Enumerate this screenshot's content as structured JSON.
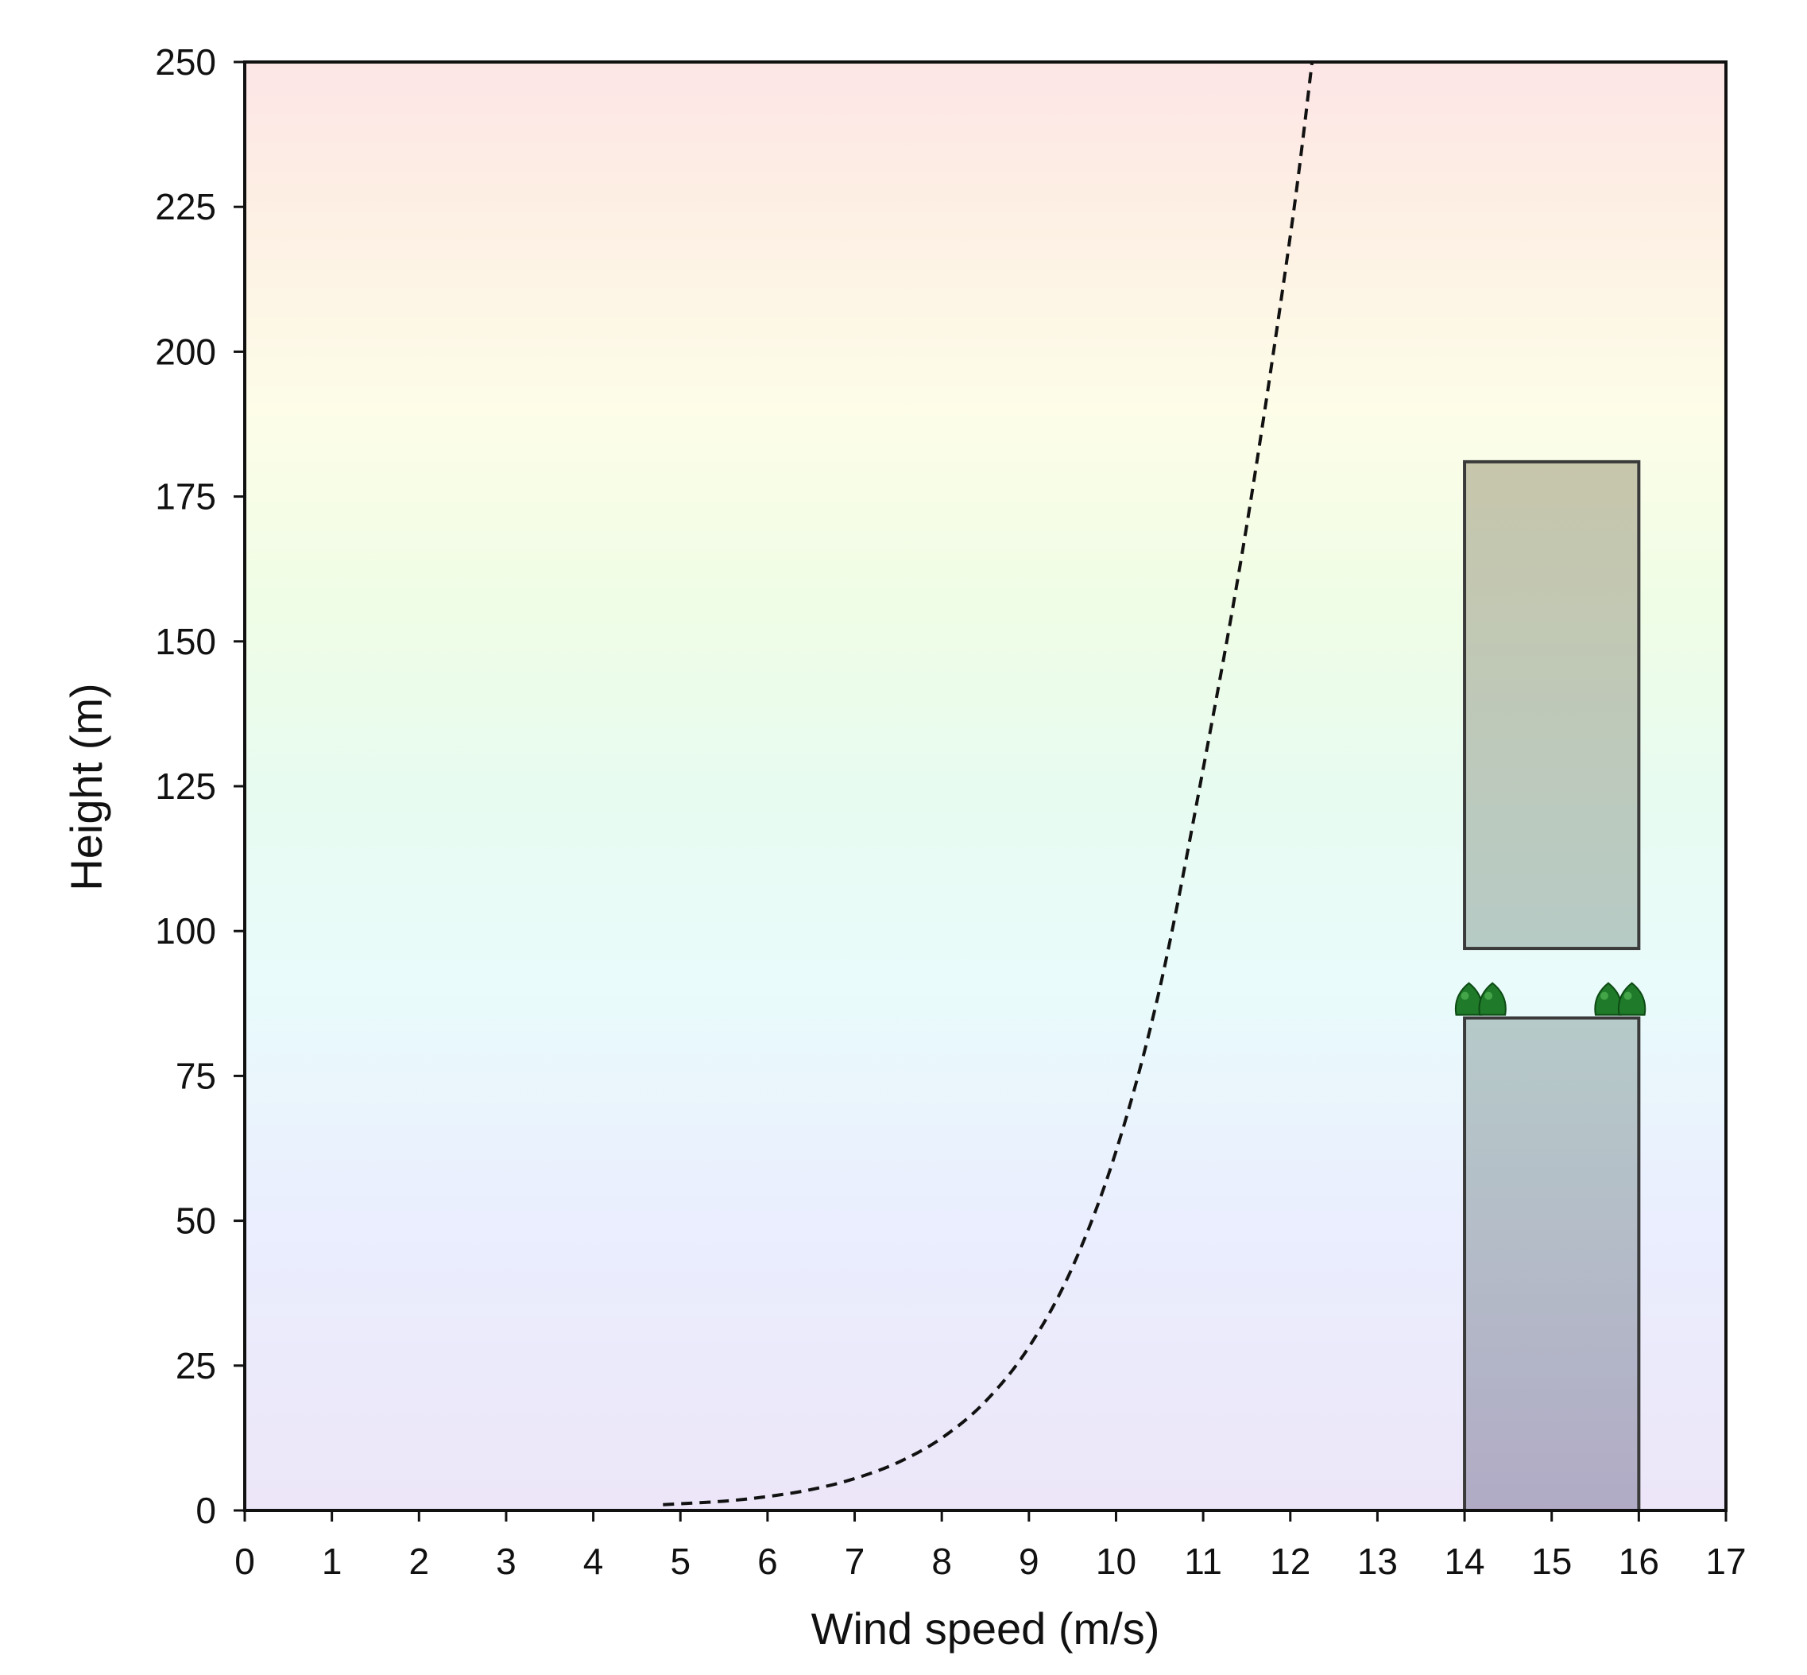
{
  "chart_data": {
    "type": "line",
    "title": "",
    "xlabel": "Wind speed (m/s)",
    "ylabel": "Height (m)",
    "xlim": [
      0,
      17
    ],
    "ylim": [
      0,
      250
    ],
    "xticks": [
      0,
      1,
      2,
      3,
      4,
      5,
      6,
      7,
      8,
      9,
      10,
      11,
      12,
      13,
      14,
      15,
      16,
      17
    ],
    "yticks": [
      0,
      25,
      50,
      75,
      100,
      125,
      150,
      175,
      200,
      225,
      250
    ],
    "grid": false,
    "legend": "none",
    "background": "vertical gradient: lavender (bottom) → light blue → light cyan → light green → light yellow → light pink (top)",
    "series": [
      {
        "style": "dashed",
        "color": "#111111",
        "x": [
          4.8,
          5.5,
          6.0,
          6.5,
          7.0,
          7.5,
          8.0,
          8.5,
          9.0,
          9.5,
          10.0,
          10.5,
          11.0,
          11.5,
          12.0,
          12.25
        ],
        "y": [
          1,
          1.6,
          2.4,
          3.6,
          5.5,
          8.3,
          12.5,
          18.8,
          28.2,
          42,
          62,
          90,
          128,
          170,
          220,
          250
        ]
      }
    ],
    "annotations": [
      {
        "kind": "rectangle",
        "x_range": [
          14.0,
          16.0
        ],
        "y_range": [
          97,
          181
        ],
        "fill_top": "#c7c6ab",
        "fill_bottom": "#b6cbc5"
      },
      {
        "kind": "rectangle",
        "x_range": [
          14.0,
          16.0
        ],
        "y_range": [
          0,
          85
        ],
        "fill_top": "#b6cac9",
        "fill_bottom": "#b1abc6"
      },
      {
        "kind": "tree-icons",
        "y": 88,
        "x": [
          14.05,
          14.32,
          15.65,
          15.92
        ],
        "color": "#1f7a2a"
      }
    ]
  }
}
